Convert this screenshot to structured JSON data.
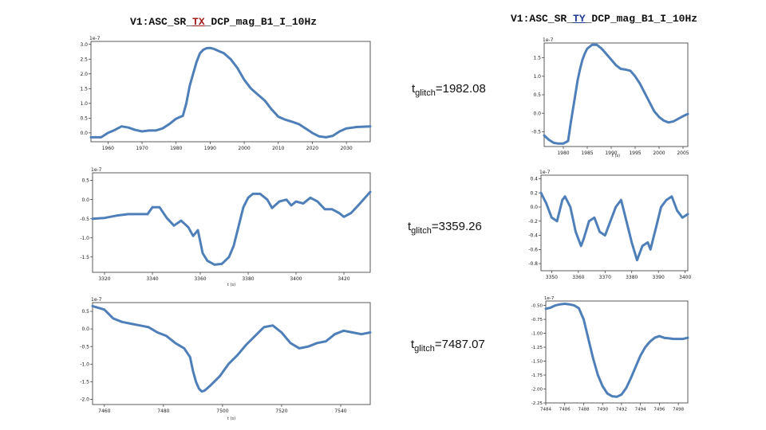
{
  "titles": {
    "left": {
      "prefix": "V1:ASC_SR_",
      "highlight": "TX",
      "suffix": "_DCP_mag_B1_I_10Hz"
    },
    "right": {
      "prefix": "V1:ASC_SR_",
      "highlight": "TY",
      "suffix": "_DCP_mag_B1_I_10Hz"
    }
  },
  "glitches": [
    {
      "t": "t",
      "sub": "glitch",
      "value": "=1982.08"
    },
    {
      "t": "t",
      "sub": "glitch",
      "value": "=3359.26"
    },
    {
      "t": "t",
      "sub": "glitch",
      "value": "=7487.07"
    }
  ],
  "colors": {
    "line": "#4f7fb8",
    "highlight_tx": "#a01a1a",
    "highlight_ty": "#1f3a93"
  },
  "chart_data": [
    {
      "id": "tx1",
      "type": "line",
      "title": "",
      "xlabel": "",
      "ylabel": "",
      "offset_text": "1e-7",
      "xlim": [
        1955,
        2037
      ],
      "ylim": [
        -0.3,
        3.1
      ],
      "xticks": [
        1960,
        1970,
        1980,
        1990,
        2000,
        2010,
        2020,
        2030
      ],
      "yticks": [
        0.0,
        0.5,
        1.0,
        1.5,
        2.0,
        2.5,
        3.0
      ],
      "series": [
        {
          "x": [
            1955,
            1958,
            1960,
            1962,
            1964,
            1966,
            1968,
            1970,
            1972,
            1974,
            1976,
            1978,
            1980,
            1982,
            1983,
            1984,
            1985,
            1986,
            1987,
            1988,
            1989,
            1990,
            1991,
            1992,
            1993,
            1994,
            1995,
            1996,
            1998,
            2000,
            2002,
            2004,
            2006,
            2008,
            2010,
            2012,
            2014,
            2016,
            2018,
            2020,
            2022,
            2024,
            2026,
            2028,
            2030,
            2033,
            2037
          ],
          "y": [
            -0.15,
            -0.15,
            0.0,
            0.1,
            0.22,
            0.18,
            0.1,
            0.05,
            0.08,
            0.08,
            0.15,
            0.3,
            0.48,
            0.58,
            1.0,
            1.6,
            2.0,
            2.4,
            2.7,
            2.82,
            2.87,
            2.88,
            2.85,
            2.8,
            2.75,
            2.7,
            2.6,
            2.5,
            2.2,
            1.8,
            1.5,
            1.3,
            1.1,
            0.8,
            0.55,
            0.45,
            0.38,
            0.3,
            0.15,
            0.0,
            -0.12,
            -0.15,
            -0.1,
            0.05,
            0.15,
            0.2,
            0.22
          ]
        }
      ]
    },
    {
      "id": "ty1",
      "type": "line",
      "title": "",
      "xlabel": "t (s)",
      "ylabel": "",
      "offset_text": "1e-7",
      "xlim": [
        1976,
        2006
      ],
      "ylim": [
        -0.9,
        1.9
      ],
      "xticks": [
        1980,
        1985,
        1990,
        1995,
        2000,
        2005
      ],
      "yticks": [
        -0.5,
        0.0,
        0.5,
        1.0,
        1.5
      ],
      "series": [
        {
          "x": [
            1976,
            1977,
            1978,
            1979,
            1980,
            1981,
            1981.5,
            1982,
            1982.5,
            1983,
            1983.5,
            1984,
            1984.5,
            1985,
            1986,
            1987,
            1988,
            1989,
            1990,
            1991,
            1992,
            1993,
            1994,
            1995,
            1996,
            1997,
            1998,
            1999,
            2000,
            2001,
            2002,
            2003,
            2004,
            2005,
            2006
          ],
          "y": [
            -0.6,
            -0.72,
            -0.8,
            -0.82,
            -0.82,
            -0.75,
            -0.3,
            0.1,
            0.5,
            0.9,
            1.2,
            1.45,
            1.62,
            1.75,
            1.85,
            1.85,
            1.75,
            1.6,
            1.45,
            1.3,
            1.2,
            1.18,
            1.15,
            1.0,
            0.8,
            0.55,
            0.3,
            0.05,
            -0.1,
            -0.2,
            -0.25,
            -0.22,
            -0.15,
            -0.08,
            -0.02
          ]
        }
      ]
    },
    {
      "id": "tx2",
      "type": "line",
      "title": "",
      "xlabel": "t (s)",
      "ylabel": "",
      "offset_text": "1e-7",
      "xlim": [
        3315,
        3431
      ],
      "ylim": [
        -1.9,
        0.7
      ],
      "xticks": [
        3320,
        3340,
        3360,
        3380,
        3400,
        3420
      ],
      "yticks": [
        -1.5,
        -1.0,
        -0.5,
        0.0,
        0.5
      ],
      "series": [
        {
          "x": [
            3315,
            3320,
            3325,
            3330,
            3335,
            3338,
            3340,
            3343,
            3346,
            3349,
            3352,
            3355,
            3357,
            3359,
            3361,
            3363,
            3366,
            3369,
            3372,
            3374,
            3376,
            3378,
            3380,
            3382,
            3385,
            3388,
            3390,
            3393,
            3396,
            3398,
            3400,
            3403,
            3406,
            3409,
            3412,
            3415,
            3418,
            3420,
            3423,
            3426,
            3431
          ],
          "y": [
            -0.5,
            -0.48,
            -0.42,
            -0.38,
            -0.38,
            -0.38,
            -0.2,
            -0.2,
            -0.48,
            -0.68,
            -0.55,
            -0.72,
            -0.95,
            -0.8,
            -1.4,
            -1.6,
            -1.7,
            -1.68,
            -1.5,
            -1.2,
            -0.7,
            -0.2,
            0.05,
            0.15,
            0.15,
            0.0,
            -0.22,
            -0.05,
            0.0,
            -0.15,
            -0.05,
            -0.1,
            0.05,
            -0.05,
            -0.25,
            -0.25,
            -0.35,
            -0.45,
            -0.35,
            -0.15,
            0.2
          ]
        }
      ]
    },
    {
      "id": "ty2",
      "type": "line",
      "title": "",
      "xlabel": "",
      "ylabel": "",
      "offset_text": "1e-7",
      "xlim": [
        3346,
        3401
      ],
      "ylim": [
        -0.9,
        0.45
      ],
      "xticks": [
        3350,
        3360,
        3370,
        3380,
        3390,
        3400
      ],
      "yticks": [
        -0.8,
        -0.6,
        -0.4,
        -0.2,
        0.0,
        0.2,
        0.4
      ],
      "series": [
        {
          "x": [
            3346,
            3348,
            3350,
            3352,
            3354,
            3355,
            3357,
            3359,
            3361,
            3362,
            3364,
            3366,
            3368,
            3370,
            3372,
            3374,
            3376,
            3378,
            3380,
            3382,
            3384,
            3386,
            3387,
            3389,
            3391,
            3393,
            3395,
            3397,
            3399,
            3401
          ],
          "y": [
            0.2,
            0.05,
            -0.15,
            -0.2,
            0.1,
            0.15,
            0.0,
            -0.35,
            -0.55,
            -0.45,
            -0.2,
            -0.15,
            -0.35,
            -0.4,
            -0.2,
            0.0,
            0.1,
            -0.2,
            -0.5,
            -0.75,
            -0.55,
            -0.5,
            -0.6,
            -0.3,
            0.0,
            0.1,
            0.15,
            -0.05,
            -0.15,
            -0.1
          ]
        }
      ]
    },
    {
      "id": "tx3",
      "type": "line",
      "title": "",
      "xlabel": "t (s)",
      "ylabel": "",
      "offset_text": "1e-7",
      "xlim": [
        7456,
        7550
      ],
      "ylim": [
        -2.15,
        0.75
      ],
      "xticks": [
        7460,
        7480,
        7500,
        7520,
        7540
      ],
      "yticks": [
        -2.0,
        -1.5,
        -1.0,
        -0.5,
        0.0,
        0.5
      ],
      "series": [
        {
          "x": [
            7456,
            7460,
            7463,
            7466,
            7469,
            7472,
            7475,
            7478,
            7481,
            7484,
            7487,
            7489,
            7490,
            7491,
            7492,
            7493,
            7494,
            7496,
            7499,
            7502,
            7505,
            7508,
            7511,
            7514,
            7517,
            7520,
            7523,
            7526,
            7529,
            7532,
            7535,
            7538,
            7541,
            7544,
            7547,
            7550
          ],
          "y": [
            0.65,
            0.55,
            0.3,
            0.2,
            0.15,
            0.1,
            0.05,
            -0.1,
            -0.2,
            -0.4,
            -0.55,
            -0.8,
            -1.2,
            -1.5,
            -1.7,
            -1.78,
            -1.75,
            -1.6,
            -1.35,
            -1.0,
            -0.75,
            -0.45,
            -0.2,
            0.05,
            0.1,
            -0.1,
            -0.4,
            -0.55,
            -0.5,
            -0.4,
            -0.35,
            -0.15,
            -0.05,
            -0.1,
            -0.15,
            -0.1
          ]
        }
      ]
    },
    {
      "id": "ty3",
      "type": "line",
      "title": "",
      "xlabel": "",
      "ylabel": "",
      "offset_text": "1e-7",
      "xlim": [
        7484,
        7499
      ],
      "ylim": [
        -2.25,
        -0.42
      ],
      "xticks": [
        7484,
        7486,
        7488,
        7490,
        7492,
        7494,
        7496,
        7498
      ],
      "yticks": [
        -2.25,
        -2.0,
        -1.75,
        -1.5,
        -1.25,
        -1.0,
        -0.75,
        -0.5
      ],
      "series": [
        {
          "x": [
            7484,
            7484.5,
            7485,
            7485.5,
            7486,
            7486.5,
            7487,
            7487.5,
            7488,
            7488.5,
            7489,
            7489.5,
            7490,
            7490.5,
            7491,
            7491.5,
            7492,
            7492.5,
            7493,
            7493.5,
            7494,
            7494.5,
            7495,
            7495.5,
            7496,
            7496.5,
            7497,
            7497.5,
            7498,
            7498.5,
            7499
          ],
          "y": [
            -0.56,
            -0.54,
            -0.5,
            -0.48,
            -0.47,
            -0.48,
            -0.5,
            -0.55,
            -0.75,
            -1.1,
            -1.45,
            -1.75,
            -1.95,
            -2.08,
            -2.13,
            -2.14,
            -2.1,
            -1.98,
            -1.8,
            -1.6,
            -1.4,
            -1.25,
            -1.15,
            -1.08,
            -1.05,
            -1.08,
            -1.09,
            -1.1,
            -1.1,
            -1.1,
            -1.08
          ]
        }
      ]
    }
  ]
}
